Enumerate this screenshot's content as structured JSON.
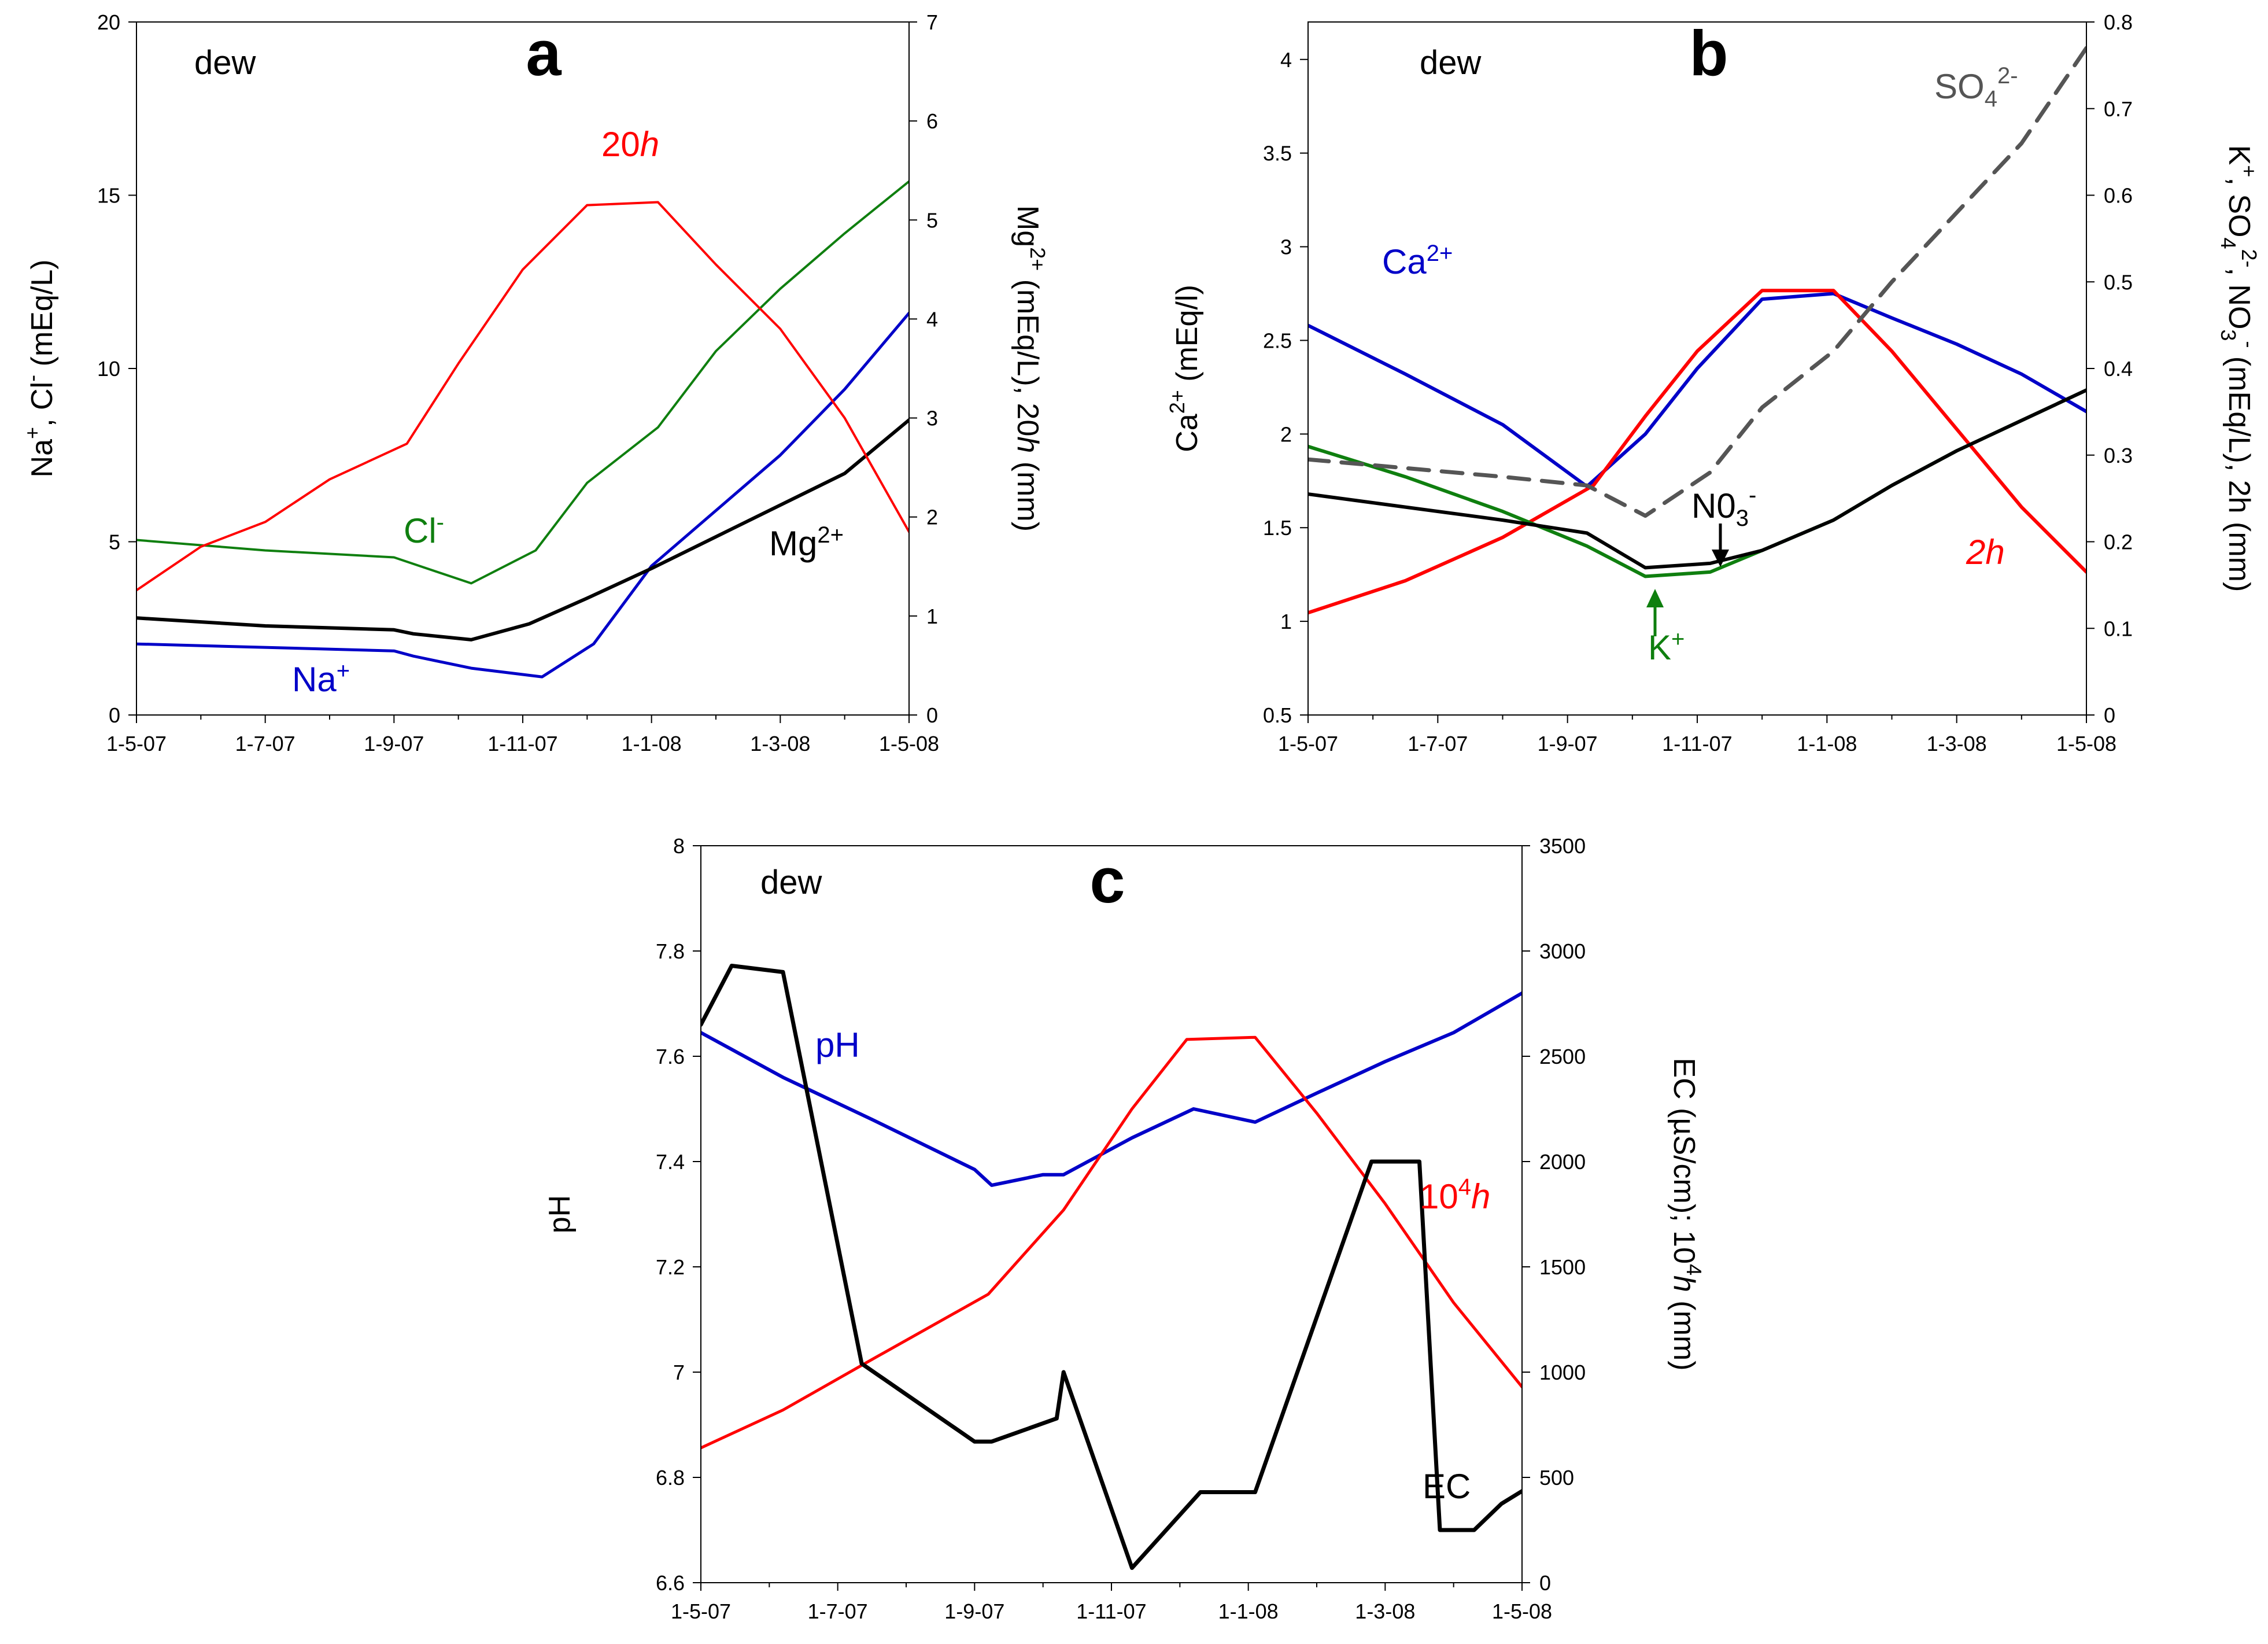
{
  "colors": {
    "na": "#0000c8",
    "cl": "#0f7f0f",
    "mg": "#000000",
    "h": "#ff0000",
    "ca": "#0000c8",
    "k": "#0f7f0f",
    "no3": "#000000",
    "so4": "#555555",
    "ph": "#0000c8",
    "ec": "#000000"
  },
  "chart_data": [
    {
      "id": "a",
      "type": "line",
      "letter": "a",
      "label": "dew",
      "xlim": [
        0,
        12
      ],
      "xticks": [
        {
          "x": 0,
          "label": "1-5-07"
        },
        {
          "x": 2,
          "label": "1-7-07"
        },
        {
          "x": 4,
          "label": "1-9-07"
        },
        {
          "x": 6,
          "label": "1-11-07"
        },
        {
          "x": 8,
          "label": "1-1-08"
        },
        {
          "x": 10,
          "label": "1-3-08"
        },
        {
          "x": 12,
          "label": "1-5-08"
        }
      ],
      "y_left": {
        "label_parts": [
          "Na",
          "+",
          ", Cl",
          "-",
          " (mEq/L)"
        ],
        "lim": [
          0,
          20
        ],
        "ticks": [
          0,
          5,
          10,
          15,
          20
        ]
      },
      "y_right": {
        "label_parts": [
          "Mg",
          "2+",
          " (mEq/L), 20",
          "h",
          " (mm)"
        ],
        "lim": [
          0,
          7
        ],
        "ticks": [
          0,
          1,
          2,
          3,
          4,
          5,
          6,
          7
        ]
      },
      "series": [
        {
          "key": "na",
          "name": "Na+",
          "axis": "left",
          "color_key": "na",
          "width": 5,
          "x": [
            0,
            4,
            4.3,
            5.2,
            6.3,
            7.1,
            8,
            9,
            10,
            11,
            12
          ],
          "y": [
            2.05,
            1.85,
            1.7,
            1.35,
            1.1,
            2.05,
            4.3,
            5.9,
            7.5,
            9.4,
            11.6
          ]
        },
        {
          "key": "cl",
          "name": "Cl-",
          "axis": "left",
          "color_key": "cl",
          "width": 4,
          "x": [
            0,
            2,
            4,
            5.2,
            6.2,
            7,
            8.1,
            9,
            10,
            11,
            12
          ],
          "y": [
            5.05,
            4.75,
            4.55,
            3.8,
            4.75,
            6.7,
            8.3,
            10.5,
            12.3,
            13.9,
            15.4
          ]
        },
        {
          "key": "mg",
          "name": "Mg2+",
          "axis": "right",
          "color_key": "mg",
          "width": 6,
          "x": [
            0,
            2,
            4,
            4.3,
            5.2,
            6.1,
            7,
            8,
            9,
            10,
            11,
            12
          ],
          "y": [
            0.98,
            0.9,
            0.86,
            0.82,
            0.76,
            0.92,
            1.18,
            1.48,
            1.8,
            2.12,
            2.44,
            2.98
          ]
        },
        {
          "key": "h20",
          "name": "20h",
          "axis": "right",
          "color_key": "h",
          "width": 4,
          "x": [
            0,
            1,
            2,
            3,
            4.2,
            5,
            6,
            7,
            8.1,
            9,
            10,
            11,
            12
          ],
          "y": [
            1.26,
            1.7,
            1.95,
            2.38,
            2.74,
            3.55,
            4.5,
            5.15,
            5.18,
            4.55,
            3.9,
            3.0,
            1.85
          ]
        }
      ],
      "annotations": [
        {
          "parts": [
            "20",
            "h"
          ],
          "style": "italic-second",
          "color_key": "h"
        },
        {
          "parts": [
            "Cl",
            "-"
          ],
          "style": "super",
          "color_key": "cl"
        },
        {
          "parts": [
            "Mg",
            "2+"
          ],
          "style": "super",
          "color_key": "mg"
        },
        {
          "parts": [
            "Na",
            "+"
          ],
          "style": "super",
          "color_key": "na"
        }
      ]
    },
    {
      "id": "b",
      "type": "line",
      "letter": "b",
      "label": "dew",
      "xlim": [
        0,
        12
      ],
      "xticks": [
        {
          "x": 0,
          "label": "1-5-07"
        },
        {
          "x": 2,
          "label": "1-7-07"
        },
        {
          "x": 4,
          "label": "1-9-07"
        },
        {
          "x": 6,
          "label": "1-11-07"
        },
        {
          "x": 8,
          "label": "1-1-08"
        },
        {
          "x": 10,
          "label": "1-3-08"
        },
        {
          "x": 12,
          "label": "1-5-08"
        }
      ],
      "y_left": {
        "label_parts": [
          "Ca",
          "2+",
          " (mEq/l)"
        ],
        "lim": [
          0.5,
          4.2
        ],
        "ticks": [
          0.5,
          1,
          1.5,
          2,
          2.5,
          3,
          3.5,
          4
        ]
      },
      "y_right": {
        "label_parts": [
          "K",
          "+",
          ", SO",
          "4",
          "2-",
          ", NO",
          "3",
          "-",
          " (mEq/L), 2h (mm)"
        ],
        "lim": [
          0,
          0.8
        ],
        "ticks": [
          0,
          0.1,
          0.2,
          0.3,
          0.4,
          0.5,
          0.6,
          0.7,
          0.8
        ]
      },
      "series": [
        {
          "key": "ca",
          "name": "Ca2+",
          "axis": "left",
          "color_key": "ca",
          "width": 6,
          "x": [
            0,
            1.5,
            3,
            4.3,
            5.2,
            6,
            7,
            8.1,
            9,
            10,
            11,
            12
          ],
          "y": [
            2.58,
            2.32,
            2.05,
            1.72,
            2.0,
            2.35,
            2.72,
            2.75,
            2.62,
            2.48,
            2.32,
            2.12
          ]
        },
        {
          "key": "h2",
          "name": "2h",
          "axis": "right",
          "color_key": "h",
          "width": 6,
          "x": [
            0,
            1.5,
            3,
            4.4,
            5.2,
            6,
            7,
            8.1,
            9,
            10,
            11,
            12
          ],
          "y": [
            0.118,
            0.155,
            0.205,
            0.265,
            0.345,
            0.42,
            0.49,
            0.49,
            0.42,
            0.33,
            0.24,
            0.165
          ]
        },
        {
          "key": "k",
          "name": "K+",
          "axis": "right",
          "color_key": "k",
          "width": 6,
          "x": [
            0,
            1.5,
            3,
            4.3,
            5.2,
            6.2,
            7,
            8.1,
            9,
            10,
            11,
            12
          ],
          "y": [
            0.31,
            0.275,
            0.235,
            0.195,
            0.16,
            0.165,
            0.19,
            0.225,
            0.265,
            0.305,
            0.34,
            0.375
          ]
        },
        {
          "key": "no3",
          "name": "NO3-",
          "axis": "right",
          "color_key": "no3",
          "width": 6,
          "x": [
            0,
            1.5,
            3,
            4.3,
            5.2,
            6.2,
            7,
            8.1,
            9,
            10,
            11,
            12
          ],
          "y": [
            0.255,
            0.24,
            0.225,
            0.21,
            0.17,
            0.175,
            0.19,
            0.225,
            0.265,
            0.305,
            0.34,
            0.375
          ]
        },
        {
          "key": "so4",
          "name": "SO42-",
          "axis": "right",
          "color_key": "so4",
          "width": 7,
          "dash": "36,22",
          "x": [
            0,
            1.5,
            3,
            4.3,
            5.2,
            6.2,
            7,
            8.1,
            9,
            10,
            11,
            12
          ],
          "y": [
            0.295,
            0.285,
            0.275,
            0.265,
            0.23,
            0.28,
            0.355,
            0.42,
            0.5,
            0.58,
            0.66,
            0.77
          ]
        }
      ],
      "annotations": [
        {
          "parts": [
            "SO",
            "4",
            "2-"
          ],
          "style": "subsup",
          "color_key": "so4"
        },
        {
          "parts": [
            "Ca",
            "2+"
          ],
          "style": "super",
          "color_key": "ca"
        },
        {
          "parts": [
            "N0",
            "3",
            "-"
          ],
          "style": "subsup",
          "color_key": "no3"
        },
        {
          "parts": [
            "K",
            "+"
          ],
          "style": "super",
          "color_key": "k"
        },
        {
          "parts": [
            "2",
            "h"
          ],
          "style": "italic",
          "color_key": "h"
        }
      ]
    },
    {
      "id": "c",
      "type": "line",
      "letter": "c",
      "label": "dew",
      "xlim": [
        0,
        12
      ],
      "xticks": [
        {
          "x": 0,
          "label": "1-5-07"
        },
        {
          "x": 2,
          "label": "1-7-07"
        },
        {
          "x": 4,
          "label": "1-9-07"
        },
        {
          "x": 6,
          "label": "1-11-07"
        },
        {
          "x": 8,
          "label": "1-1-08"
        },
        {
          "x": 10,
          "label": "1-3-08"
        },
        {
          "x": 12,
          "label": "1-5-08"
        }
      ],
      "y_left": {
        "label_parts": [
          "pH"
        ],
        "lim": [
          6.6,
          8
        ],
        "ticks": [
          6.6,
          6.8,
          7,
          7.2,
          7.4,
          7.6,
          7.8,
          8
        ]
      },
      "y_right": {
        "label_parts": [
          "EC (µS/cm); 10",
          "4",
          "h",
          " (mm)"
        ],
        "lim": [
          0,
          3500
        ],
        "ticks": [
          0,
          500,
          1000,
          1500,
          2000,
          2500,
          3000,
          3500
        ]
      },
      "series": [
        {
          "key": "ph",
          "name": "pH",
          "axis": "left",
          "color_key": "ph",
          "width": 6,
          "x": [
            0,
            1.2,
            2.5,
            4,
            4.25,
            5,
            5.3,
            6.3,
            7.2,
            8.1,
            9,
            10,
            11,
            12
          ],
          "y": [
            7.645,
            7.56,
            7.48,
            7.385,
            7.355,
            7.375,
            7.375,
            7.445,
            7.5,
            7.475,
            7.53,
            7.59,
            7.645,
            7.72
          ]
        },
        {
          "key": "h104",
          "name": "10^4 h",
          "axis": "right",
          "color_key": "h",
          "width": 5,
          "x": [
            0,
            1.2,
            2.5,
            4.2,
            5.3,
            6.3,
            7.1,
            8.1,
            9,
            10,
            11,
            12
          ],
          "y": [
            640,
            820,
            1060,
            1370,
            1770,
            2250,
            2580,
            2590,
            2230,
            1800,
            1330,
            930
          ]
        },
        {
          "key": "ec",
          "name": "EC",
          "axis": "right",
          "color_key": "ec",
          "width": 7,
          "x": [
            0,
            0.45,
            1.2,
            2.35,
            4,
            4.25,
            5.2,
            5.3,
            6.3,
            7.3,
            8.1,
            9.8,
            10.5,
            10.8,
            11.3,
            11.7,
            12
          ],
          "y": [
            2650,
            2930,
            2900,
            1040,
            670,
            670,
            780,
            1000,
            70,
            430,
            430,
            2000,
            2000,
            250,
            250,
            375,
            435
          ]
        }
      ],
      "annotations": [
        {
          "parts": [
            "pH"
          ],
          "style": "plain",
          "color_key": "ph"
        },
        {
          "parts": [
            "10",
            "4",
            "h"
          ],
          "style": "pow-italic",
          "color_key": "h"
        },
        {
          "parts": [
            "EC"
          ],
          "style": "plain",
          "color_key": "ec"
        }
      ]
    }
  ]
}
